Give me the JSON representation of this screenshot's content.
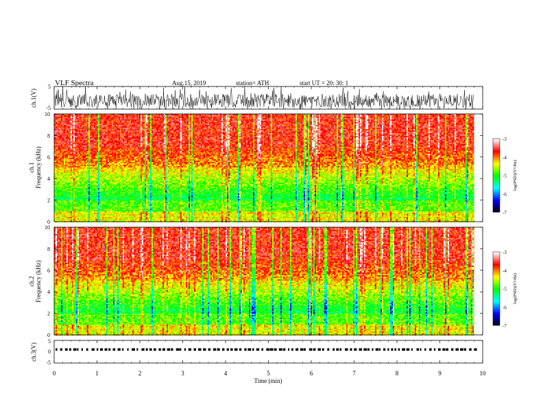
{
  "header": {
    "title": "VLF  Spectra",
    "date": "Aug.15, 2019",
    "station": "station= ATH",
    "start_ut": "start  UT  =    20: 30: 1"
  },
  "chart_data": [
    {
      "id": "ch1-waveform",
      "type": "line",
      "ylabel": "ch.1(V)",
      "ylim": [
        -5,
        5
      ],
      "yticks": [
        "5",
        "-5"
      ],
      "xlim": [
        0,
        10
      ],
      "baseline": -1.3
    },
    {
      "id": "ch1-spectrogram",
      "type": "heatmap",
      "ylabel_line1": "ch.1",
      "ylabel_line2": "Frequency  (kHz)",
      "ylim": [
        0,
        10
      ],
      "yticks": [
        "0",
        "2",
        "4",
        "6",
        "8",
        "10"
      ],
      "xlim": [
        0,
        10
      ],
      "data_end_min": 9.8,
      "colorbar": {
        "label": "log(PSD)(V²/Hz)",
        "range": [
          -7,
          -3
        ],
        "ticks": [
          "-3",
          "-4",
          "-5",
          "-6",
          "-7"
        ]
      }
    },
    {
      "id": "ch2-spectrogram",
      "type": "heatmap",
      "ylabel_line1": "ch.2",
      "ylabel_line2": "Frequency  (kHz)",
      "ylim": [
        0,
        10
      ],
      "yticks": [
        "0",
        "2",
        "4",
        "6",
        "8",
        "10"
      ],
      "xlim": [
        0,
        10
      ],
      "data_end_min": 9.8,
      "colorbar": {
        "label": "log(PSD)(V²/Hz)",
        "range": [
          -7,
          -3
        ],
        "ticks": [
          "-3",
          "-4",
          "-5",
          "-6",
          "-7"
        ]
      }
    },
    {
      "id": "ch3-waveform",
      "type": "line",
      "ylabel": "ch.3(V)",
      "ylim": [
        -5,
        5
      ],
      "yticks": [
        "5",
        "0",
        "-5"
      ],
      "xlim": [
        0,
        10
      ],
      "baseline": 0.9
    }
  ],
  "x_axis": {
    "label": "Time  (min)",
    "ticks": [
      "0",
      "1",
      "2",
      "3",
      "4",
      "5",
      "6",
      "7",
      "8",
      "9",
      "10"
    ]
  },
  "colormap": [
    "#000000",
    "#0000ff",
    "#00ffff",
    "#00ff00",
    "#ffff00",
    "#ff0000",
    "#ffffff"
  ]
}
